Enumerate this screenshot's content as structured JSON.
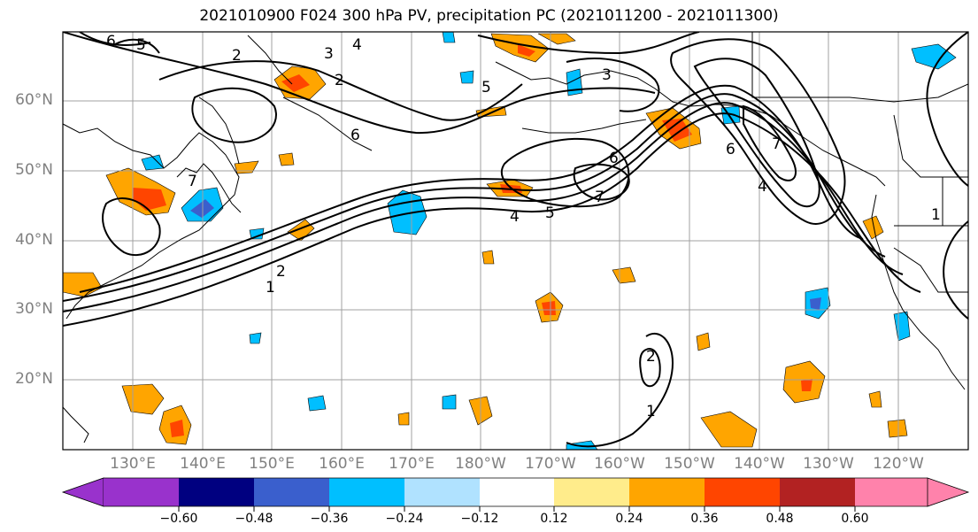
{
  "title": "2021010900 F024 300 hPa PV, precipitation PC (2021011200 - 2021011300)",
  "lat_labels": [
    "60°N",
    "50°N",
    "40°N",
    "30°N",
    "20°N"
  ],
  "lon_labels": [
    "130°E",
    "140°E",
    "150°E",
    "160°E",
    "170°E",
    "180°W",
    "170°W",
    "160°W",
    "150°W",
    "140°W",
    "130°W",
    "120°W"
  ],
  "pv_contour_labels": [
    "1",
    "2",
    "3",
    "4",
    "5",
    "6",
    "7"
  ],
  "colorbar": {
    "ticks": [
      "−0.60",
      "−0.48",
      "−0.36",
      "−0.24",
      "−0.12",
      "0.12",
      "0.24",
      "0.36",
      "0.48",
      "0.60"
    ],
    "colors": [
      "#9932cc",
      "#000080",
      "#3a5fcd",
      "#00bfff",
      "#b0e2ff",
      "#ffffff",
      "#ffec8b",
      "#ffa500",
      "#ff4500",
      "#b22222",
      "#ff82ab"
    ]
  },
  "colors": {
    "grid": "#a0a0a0",
    "coast": "#000000",
    "contour": "#000000"
  }
}
